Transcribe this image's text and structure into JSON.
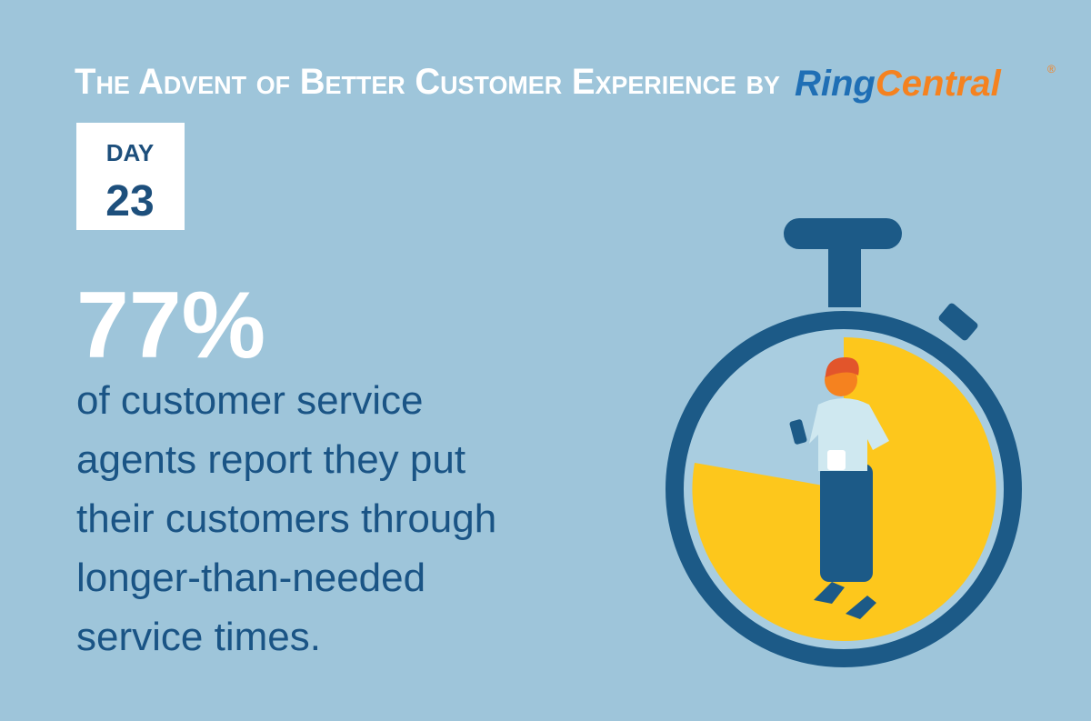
{
  "header": {
    "title": "The Advent of Better Customer Experience by",
    "brand": {
      "first": "Ring",
      "second": "Central",
      "mark": "®"
    }
  },
  "day": {
    "label": "DAY",
    "number": "23"
  },
  "stat": {
    "value": "77%",
    "lines": [
      "of customer service",
      "agents report they put",
      "their customers through",
      "longer-than-needed",
      "service times."
    ]
  }
}
